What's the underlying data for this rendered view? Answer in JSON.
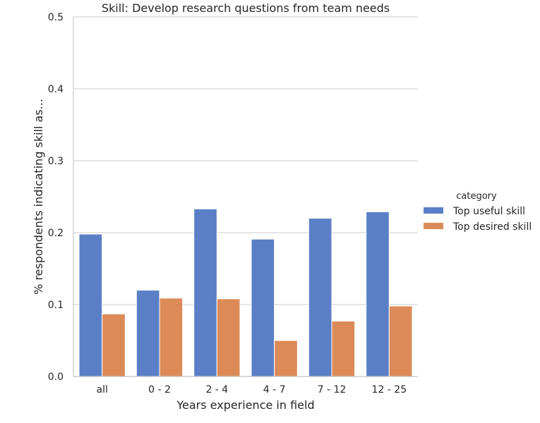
{
  "chart_data": {
    "type": "bar",
    "title": "Skill: Develop research questions from team needs",
    "xlabel": "Years experience in field",
    "ylabel": "% respondents indicating skill as...",
    "categories": [
      "all",
      "0 - 2",
      "2 - 4",
      "4 - 7",
      "7 - 12",
      "12 - 25"
    ],
    "series": [
      {
        "name": "Top useful skill",
        "values": [
          0.198,
          0.12,
          0.233,
          0.191,
          0.22,
          0.229
        ],
        "color": "#5a7fc7"
      },
      {
        "name": "Top desired skill",
        "values": [
          0.087,
          0.109,
          0.108,
          0.05,
          0.077,
          0.098
        ],
        "color": "#dc8b58"
      }
    ],
    "ylim": [
      0,
      0.5
    ],
    "yticks": [
      "0.0",
      "0.1",
      "0.2",
      "0.3",
      "0.4",
      "0.5"
    ],
    "grid": "horizontal",
    "legend": {
      "title": "category",
      "placement": "right"
    }
  }
}
